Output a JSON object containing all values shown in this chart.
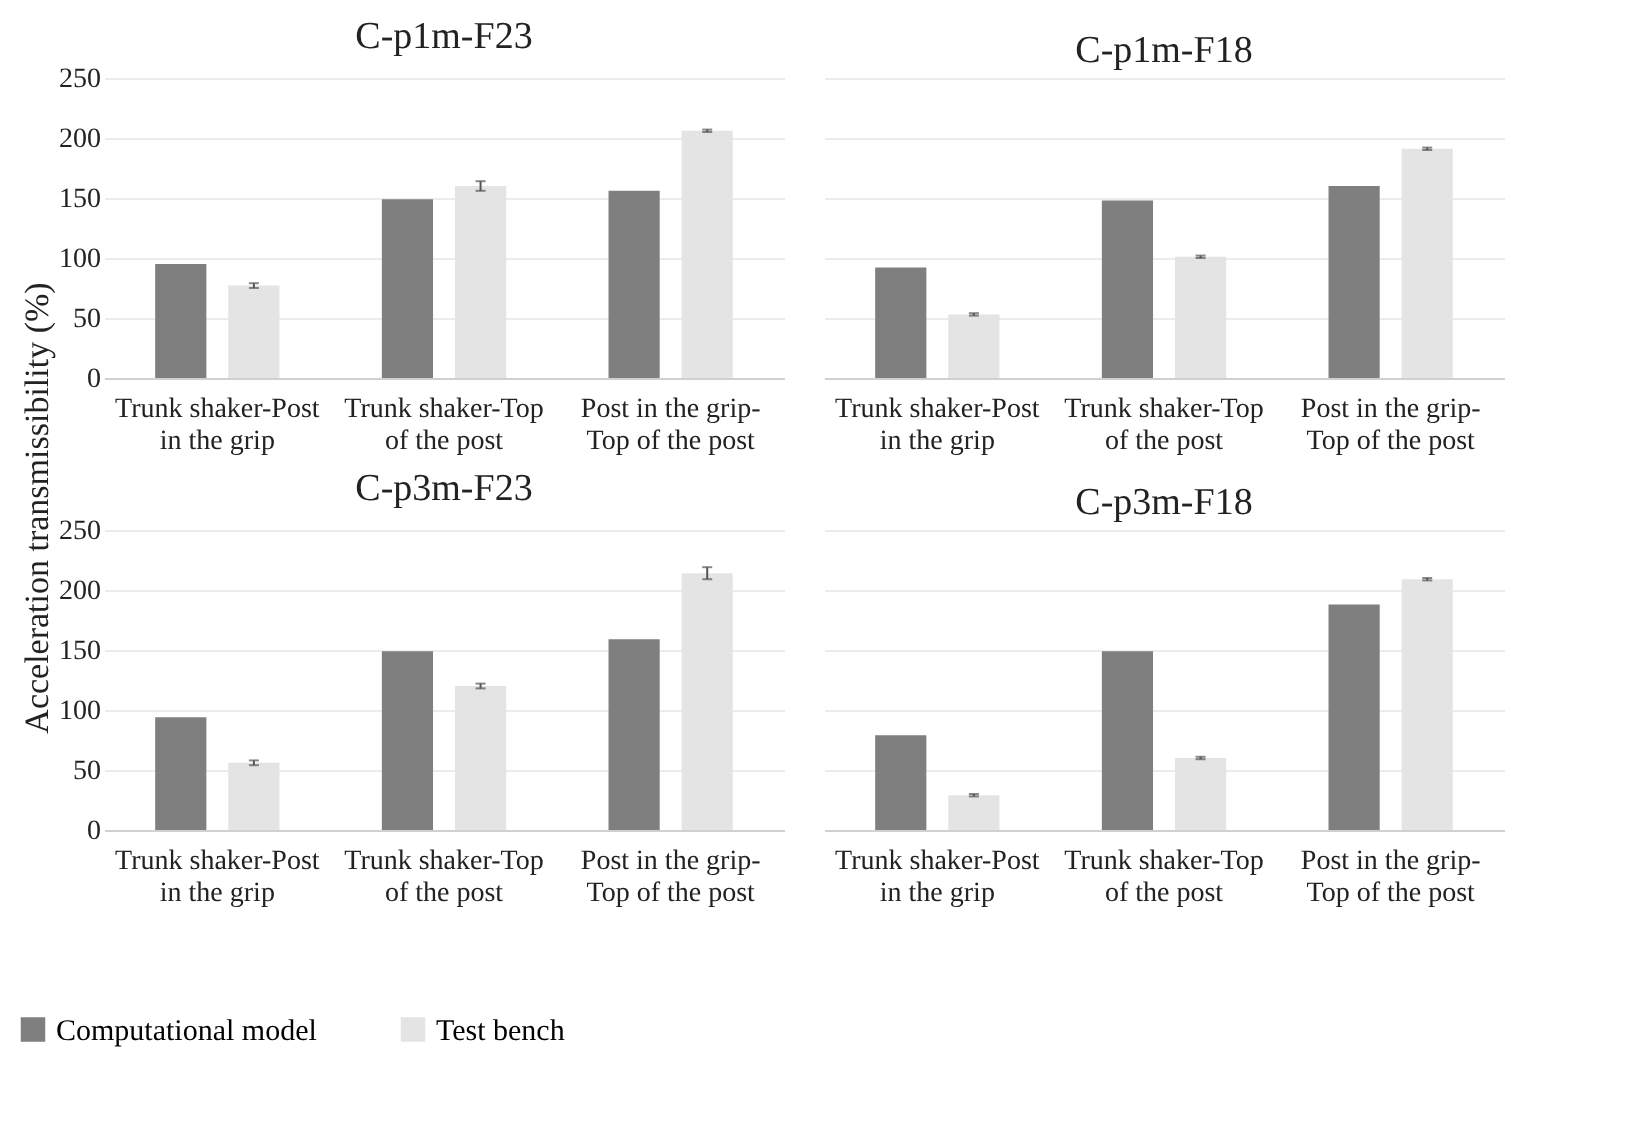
{
  "chart_data": [
    {
      "type": "bar",
      "title": "C-p1m-F23",
      "ylabel": "Acceleration transmissibility (%)",
      "categories": [
        "Trunk shaker-Post in the grip",
        "Trunk shaker-Top of the post",
        "Post in the grip-Top of the post"
      ],
      "series": [
        {
          "name": "Computational model",
          "color": "#7f7f7f",
          "values": [
            95,
            149,
            156
          ]
        },
        {
          "name": "Test bench",
          "color": "#e4e4e4",
          "values": [
            77,
            160,
            206
          ],
          "errors": [
            2,
            4,
            1
          ]
        }
      ],
      "ylim": [
        0,
        250
      ],
      "yticks": [
        0,
        50,
        100,
        150,
        200,
        250
      ],
      "grid": "y",
      "legend": "bottom"
    },
    {
      "type": "bar",
      "title": "C-p1m-F18",
      "categories": [
        "Trunk shaker-Post in the grip",
        "Trunk shaker-Top of the post",
        "Post in the grip-Top of the post"
      ],
      "series": [
        {
          "name": "Computational model",
          "color": "#7f7f7f",
          "values": [
            92,
            148,
            160
          ]
        },
        {
          "name": "Test bench",
          "color": "#e4e4e4",
          "values": [
            53,
            101,
            191
          ],
          "errors": [
            1,
            1,
            1
          ]
        }
      ],
      "ylim": [
        0,
        250
      ],
      "yticks": [
        0,
        50,
        100,
        150,
        200,
        250
      ],
      "grid": "y",
      "legend": "bottom",
      "tick_labels": "x"
    },
    {
      "type": "bar",
      "title": "C-p3m-F23",
      "categories": [
        "Trunk shaker-Post in the grip",
        "Trunk shaker-Top of the post",
        "Post in the grip-Top of the post"
      ],
      "series": [
        {
          "name": "Computational model",
          "color": "#7f7f7f",
          "values": [
            94,
            149,
            159
          ]
        },
        {
          "name": "Test bench",
          "color": "#e4e4e4",
          "values": [
            56,
            120,
            214
          ],
          "errors": [
            2,
            2,
            5
          ]
        }
      ],
      "ylim": [
        0,
        250
      ],
      "yticks": [
        0,
        50,
        100,
        150,
        200,
        250
      ],
      "grid": "y",
      "legend": "bottom"
    },
    {
      "type": "bar",
      "title": "C-p3m-F18",
      "categories": [
        "Trunk shaker-Post in the grip",
        "Trunk shaker-Top of the post",
        "Post in the grip-Top of the post"
      ],
      "series": [
        {
          "name": "Computational model",
          "color": "#7f7f7f",
          "values": [
            79,
            149,
            188
          ]
        },
        {
          "name": "Test bench",
          "color": "#e4e4e4",
          "values": [
            29,
            60,
            209
          ],
          "errors": [
            1,
            1,
            1
          ]
        }
      ],
      "ylim": [
        0,
        250
      ],
      "yticks": [
        0,
        50,
        100,
        150,
        200,
        250
      ],
      "grid": "y",
      "legend": "bottom",
      "tick_labels": "x"
    }
  ]
}
